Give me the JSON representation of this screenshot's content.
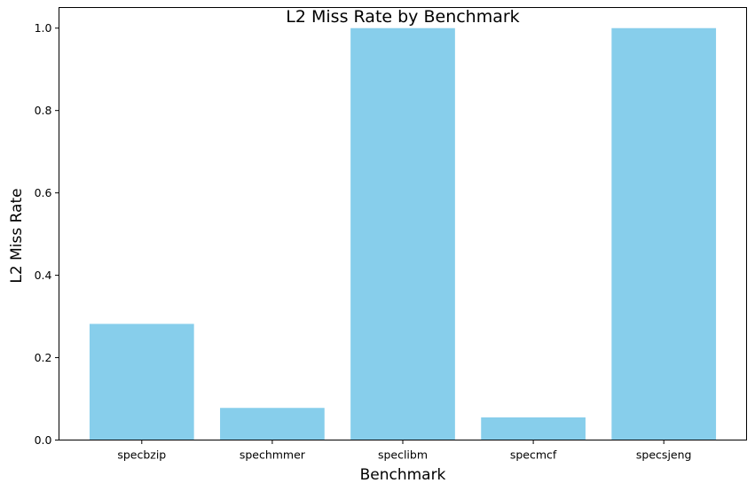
{
  "chart_data": {
    "type": "bar",
    "title": "L2 Miss Rate by Benchmark",
    "xlabel": "Benchmark",
    "ylabel": "L2 Miss Rate",
    "categories": [
      "specbzip",
      "spechmmer",
      "speclibm",
      "specmcf",
      "specsjeng"
    ],
    "values": [
      0.282,
      0.078,
      1.0,
      0.055,
      1.0
    ],
    "ylim": [
      0,
      1.05
    ],
    "yticks": [
      "0.0",
      "0.2",
      "0.4",
      "0.6",
      "0.8",
      "1.0"
    ],
    "grid": false,
    "bar_color": "#87ceeb"
  }
}
